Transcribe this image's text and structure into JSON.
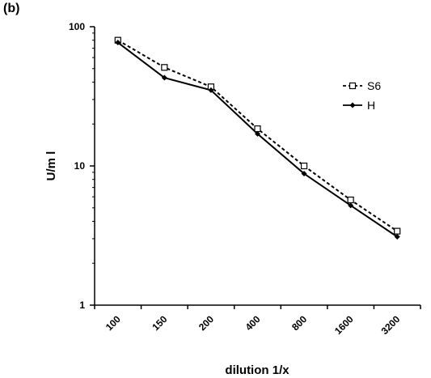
{
  "panel_label": "(b)",
  "chart_data": {
    "type": "line",
    "categories": [
      "100",
      "150",
      "200",
      "400",
      "800",
      "1600",
      "3200"
    ],
    "xlabel": "dilution 1/x",
    "ylabel": "U/m l",
    "yscale": "log",
    "ylim": [
      1,
      100
    ],
    "yticks": [
      "1",
      "10",
      "100"
    ],
    "grid": false,
    "legend_position": "top-right",
    "series": [
      {
        "name": "S6",
        "values": [
          80,
          51,
          37,
          18.5,
          10,
          5.7,
          3.4
        ],
        "style": "dashed",
        "marker": "open-square",
        "color": "#000000"
      },
      {
        "name": "H",
        "values": [
          77,
          43,
          35,
          17,
          8.8,
          5.2,
          3.1
        ],
        "style": "solid",
        "marker": "filled-diamond",
        "color": "#000000"
      }
    ]
  }
}
